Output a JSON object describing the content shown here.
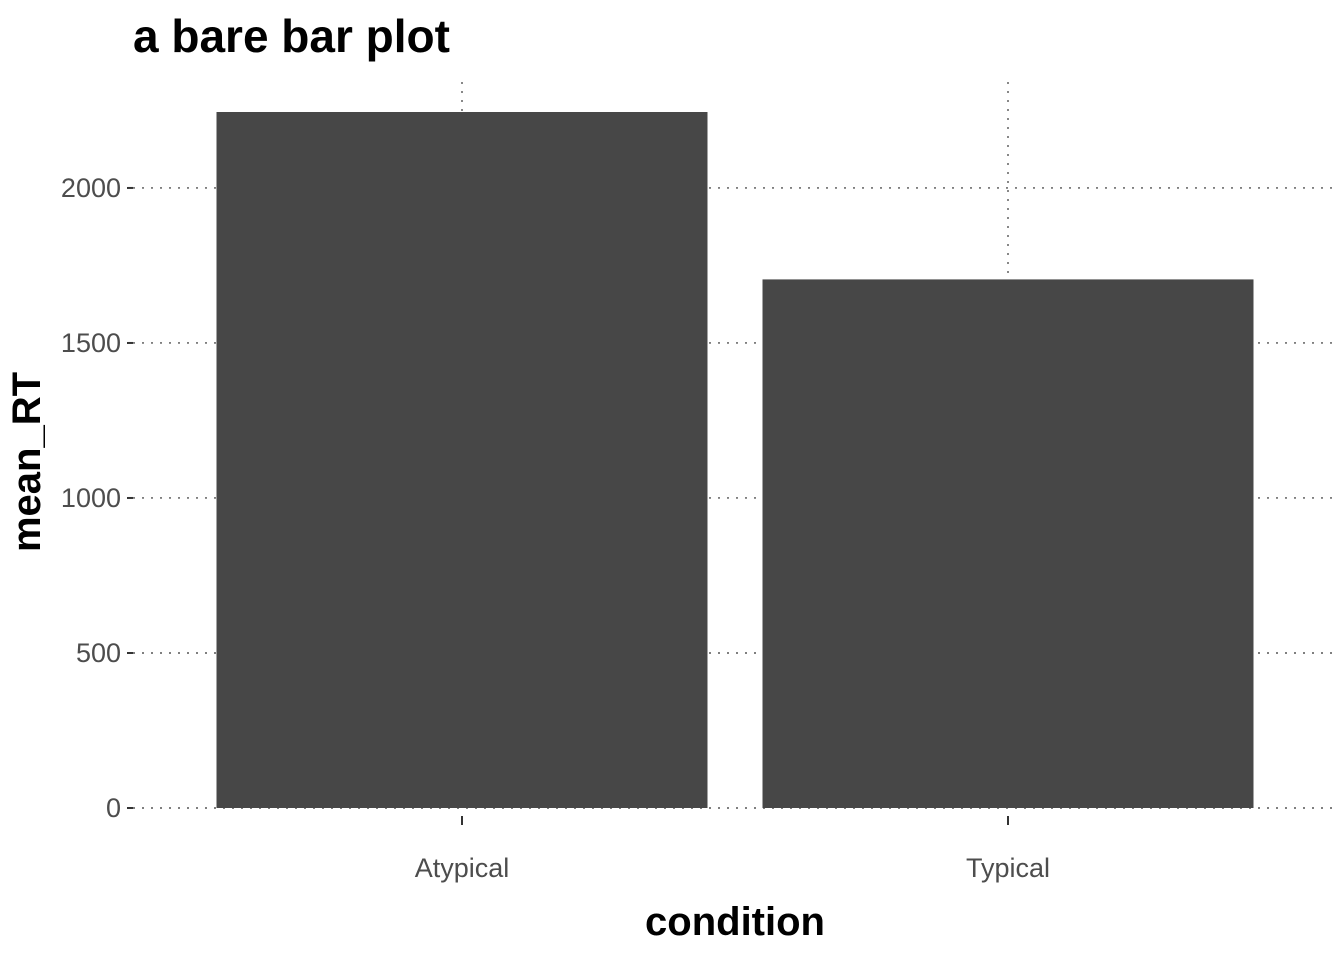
{
  "chart_data": {
    "type": "bar",
    "title": "a bare bar plot",
    "xlabel": "condition",
    "ylabel": "mean_RT",
    "categories": [
      "Atypical",
      "Typical"
    ],
    "values": [
      2245,
      1705
    ],
    "ylim": [
      0,
      2245
    ],
    "yticks": [
      0,
      500,
      1000,
      1500,
      2000
    ],
    "ytick_labels": [
      "0",
      "500",
      "1000",
      "1500",
      "2000"
    ],
    "bar_color": "#474747",
    "grid": true,
    "grid_style": "dotted",
    "legend": "none"
  }
}
